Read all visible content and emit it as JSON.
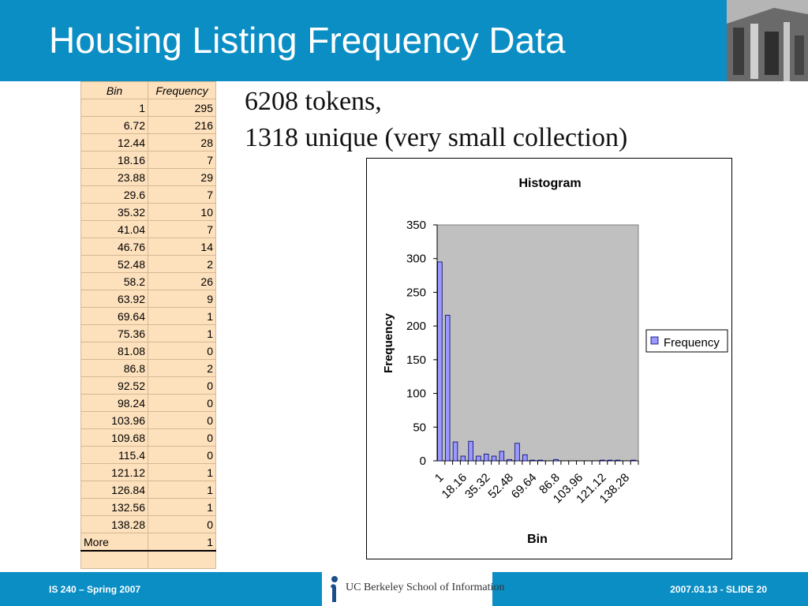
{
  "slide": {
    "title": "Housing Listing Frequency Data",
    "line1": "6208 tokens,",
    "line2": "1318 unique (very small collection)"
  },
  "table": {
    "headers": [
      "Bin",
      "Frequency"
    ],
    "rows": [
      [
        "1",
        "295"
      ],
      [
        "6.72",
        "216"
      ],
      [
        "12.44",
        "28"
      ],
      [
        "18.16",
        "7"
      ],
      [
        "23.88",
        "29"
      ],
      [
        "29.6",
        "7"
      ],
      [
        "35.32",
        "10"
      ],
      [
        "41.04",
        "7"
      ],
      [
        "46.76",
        "14"
      ],
      [
        "52.48",
        "2"
      ],
      [
        "58.2",
        "26"
      ],
      [
        "63.92",
        "9"
      ],
      [
        "69.64",
        "1"
      ],
      [
        "75.36",
        "1"
      ],
      [
        "81.08",
        "0"
      ],
      [
        "86.8",
        "2"
      ],
      [
        "92.52",
        "0"
      ],
      [
        "98.24",
        "0"
      ],
      [
        "103.96",
        "0"
      ],
      [
        "109.68",
        "0"
      ],
      [
        "115.4",
        "0"
      ],
      [
        "121.12",
        "1"
      ],
      [
        "126.84",
        "1"
      ],
      [
        "132.56",
        "1"
      ],
      [
        "138.28",
        "0"
      ],
      [
        "More",
        "1"
      ]
    ]
  },
  "chart_data": {
    "type": "bar",
    "title": "Histogram",
    "xlabel": "Bin",
    "ylabel": "Frequency",
    "ylim": [
      0,
      350
    ],
    "yticks": [
      "0",
      "50",
      "100",
      "150",
      "200",
      "250",
      "300",
      "350"
    ],
    "categories": [
      "1",
      "6.72",
      "12.44",
      "18.16",
      "23.88",
      "29.6",
      "35.32",
      "41.04",
      "46.76",
      "52.48",
      "58.2",
      "63.92",
      "69.64",
      "75.36",
      "81.08",
      "86.8",
      "92.52",
      "98.24",
      "103.96",
      "109.68",
      "115.4",
      "121.12",
      "126.84",
      "132.56",
      "138.28",
      "More"
    ],
    "xtick_labels_shown": [
      "1",
      "18.16",
      "35.32",
      "52.48",
      "69.64",
      "86.8",
      "103.96",
      "121.12",
      "138.28"
    ],
    "series": [
      {
        "name": "Frequency",
        "values": [
          295,
          216,
          28,
          7,
          29,
          7,
          10,
          7,
          14,
          2,
          26,
          9,
          1,
          1,
          0,
          2,
          0,
          0,
          0,
          0,
          0,
          1,
          1,
          1,
          0,
          1
        ]
      }
    ],
    "legend": "right",
    "colors": {
      "bar": "#9999ff",
      "plot_bg": "#c0c0c0"
    }
  },
  "footer": {
    "left": "IS 240 – Spring 2007",
    "logo": "UC Berkeley School of Information",
    "right": "2007.03.13 - SLIDE 20"
  }
}
